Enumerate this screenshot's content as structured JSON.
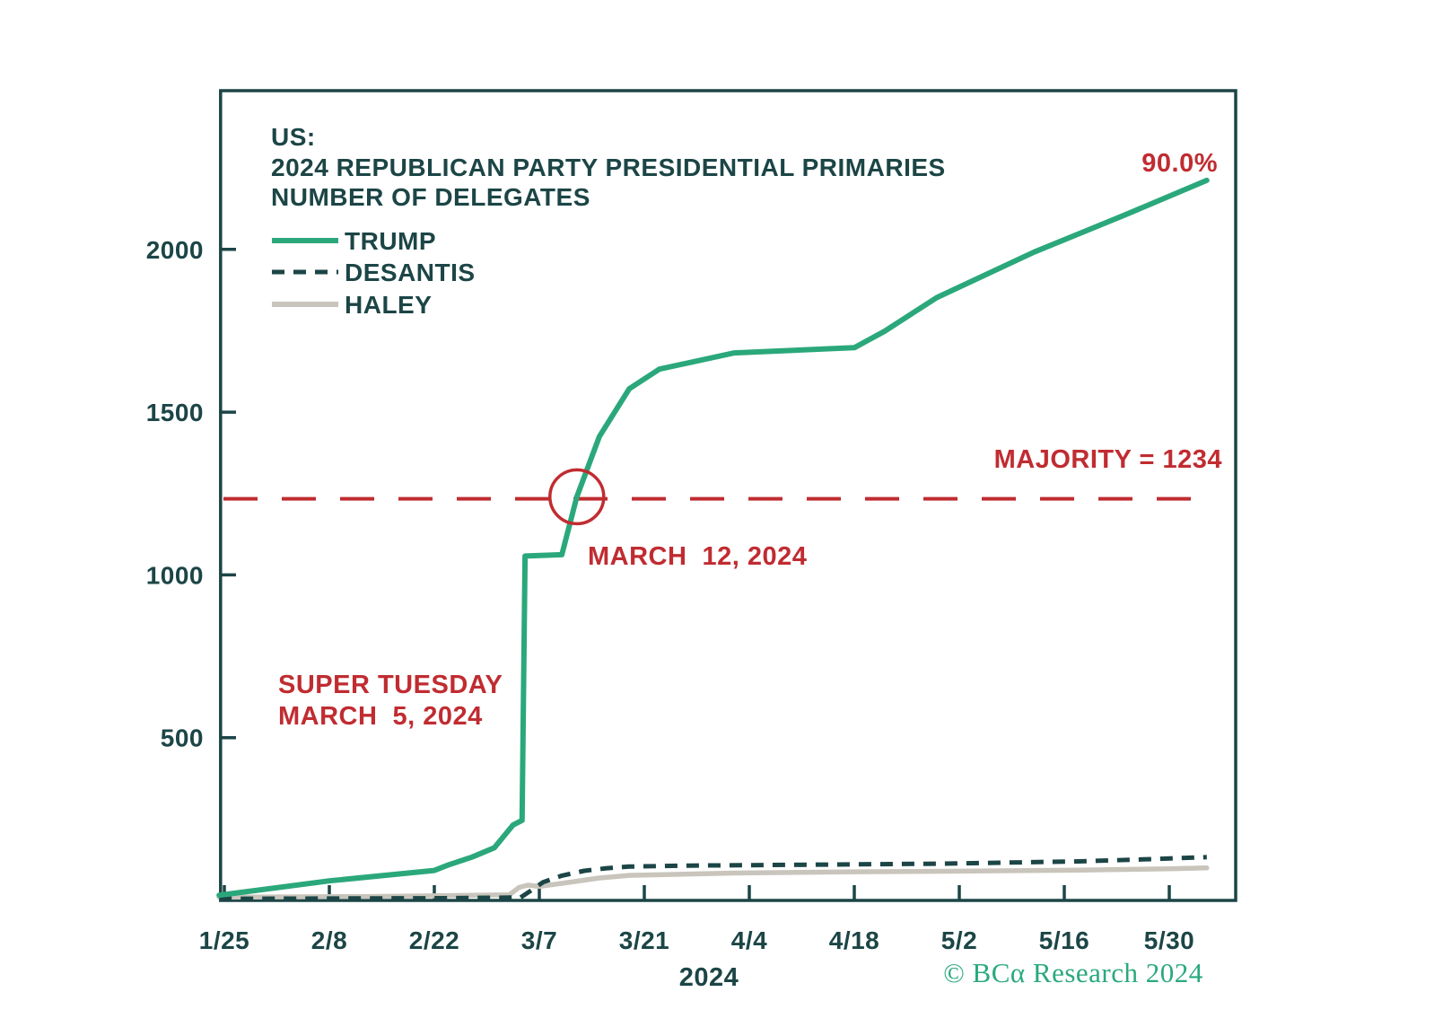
{
  "title": {
    "line1": "US:",
    "line2": "2024 REPUBLICAN PARTY PRESIDENTIAL PRIMARIES",
    "line3": "NUMBER OF DELEGATES"
  },
  "x_axis_year_label": "2024",
  "copyright": "© BCα Research 2024",
  "colors": {
    "trump_green": "#2ba87b",
    "dark_teal": "#1c4546",
    "haley_gray": "#c9c5bc",
    "annotation_red": "#c02c31",
    "background": "#ffffff"
  },
  "chart_data": {
    "type": "line",
    "title": "US: 2024 Republican Party Presidential Primaries — Number of Delegates",
    "xlabel": "2024",
    "ylabel": "Number of delegates",
    "x_unit": "days since 1/25/2024",
    "xlim_days": [
      -0.7,
      134.5
    ],
    "ylim": [
      0,
      2490
    ],
    "grid": false,
    "legend_position": "top-left",
    "y_ticks": [
      {
        "label": "500",
        "value": 500
      },
      {
        "label": "1000",
        "value": 1000
      },
      {
        "label": "1500",
        "value": 1500
      },
      {
        "label": "2000",
        "value": 2000
      }
    ],
    "x_ticks": [
      {
        "label": "1/25",
        "day": 0
      },
      {
        "label": "2/8",
        "day": 14
      },
      {
        "label": "2/22",
        "day": 28
      },
      {
        "label": "3/7",
        "day": 42
      },
      {
        "label": "3/21",
        "day": 56
      },
      {
        "label": "4/4",
        "day": 70
      },
      {
        "label": "4/18",
        "day": 84
      },
      {
        "label": "5/2",
        "day": 98
      },
      {
        "label": "5/16",
        "day": 112
      },
      {
        "label": "5/30",
        "day": 126
      }
    ],
    "series": [
      {
        "name": "TRUMP",
        "color": "#2ba87b",
        "style": "solid",
        "points": [
          [
            -0.7,
            16
          ],
          [
            14,
            60
          ],
          [
            28,
            92
          ],
          [
            30,
            110
          ],
          [
            33,
            133
          ],
          [
            36,
            162
          ],
          [
            38.5,
            232
          ],
          [
            39.7,
            246
          ],
          [
            40.1,
            1058
          ],
          [
            45,
            1062
          ],
          [
            47,
            1240
          ],
          [
            50,
            1425
          ],
          [
            54,
            1572
          ],
          [
            58,
            1632
          ],
          [
            68,
            1682
          ],
          [
            84,
            1698
          ],
          [
            88,
            1748
          ],
          [
            95,
            1852
          ],
          [
            108,
            1992
          ],
          [
            120,
            2105
          ],
          [
            131,
            2212
          ]
        ]
      },
      {
        "name": "DESANTIS",
        "color": "#1c4546",
        "style": "dashed",
        "points": [
          [
            -0.7,
            5
          ],
          [
            30,
            7
          ],
          [
            39.5,
            9
          ],
          [
            41,
            32
          ],
          [
            42.5,
            56
          ],
          [
            45,
            76
          ],
          [
            48,
            91
          ],
          [
            51,
            99
          ],
          [
            54,
            104
          ],
          [
            62,
            107
          ],
          [
            80,
            110
          ],
          [
            96,
            113
          ],
          [
            104,
            116
          ],
          [
            114,
            120
          ],
          [
            124,
            127
          ],
          [
            131,
            133
          ]
        ]
      },
      {
        "name": "HALEY",
        "color": "#c9c5bc",
        "style": "solid",
        "points": [
          [
            -0.7,
            10
          ],
          [
            20,
            12
          ],
          [
            30,
            15
          ],
          [
            38,
            17
          ],
          [
            39.3,
            40
          ],
          [
            40.5,
            47
          ],
          [
            42,
            43
          ],
          [
            44,
            49
          ],
          [
            47,
            59
          ],
          [
            50,
            69
          ],
          [
            54,
            77
          ],
          [
            68,
            84
          ],
          [
            84,
            88
          ],
          [
            98,
            90
          ],
          [
            114,
            93
          ],
          [
            126,
            97
          ],
          [
            131,
            100
          ]
        ]
      }
    ],
    "annotations": {
      "end_label": {
        "text": "90.0%",
        "series": "TRUMP"
      },
      "majority_line": {
        "text": "MAJORITY = 1234",
        "value": 1234
      },
      "clinch_marker": {
        "text": "MARCH  12, 2024",
        "day": 47,
        "value": 1240
      },
      "super_tuesday": {
        "line1": "SUPER TUESDAY",
        "line2": "MARCH  5, 2024",
        "day": 40
      }
    }
  }
}
